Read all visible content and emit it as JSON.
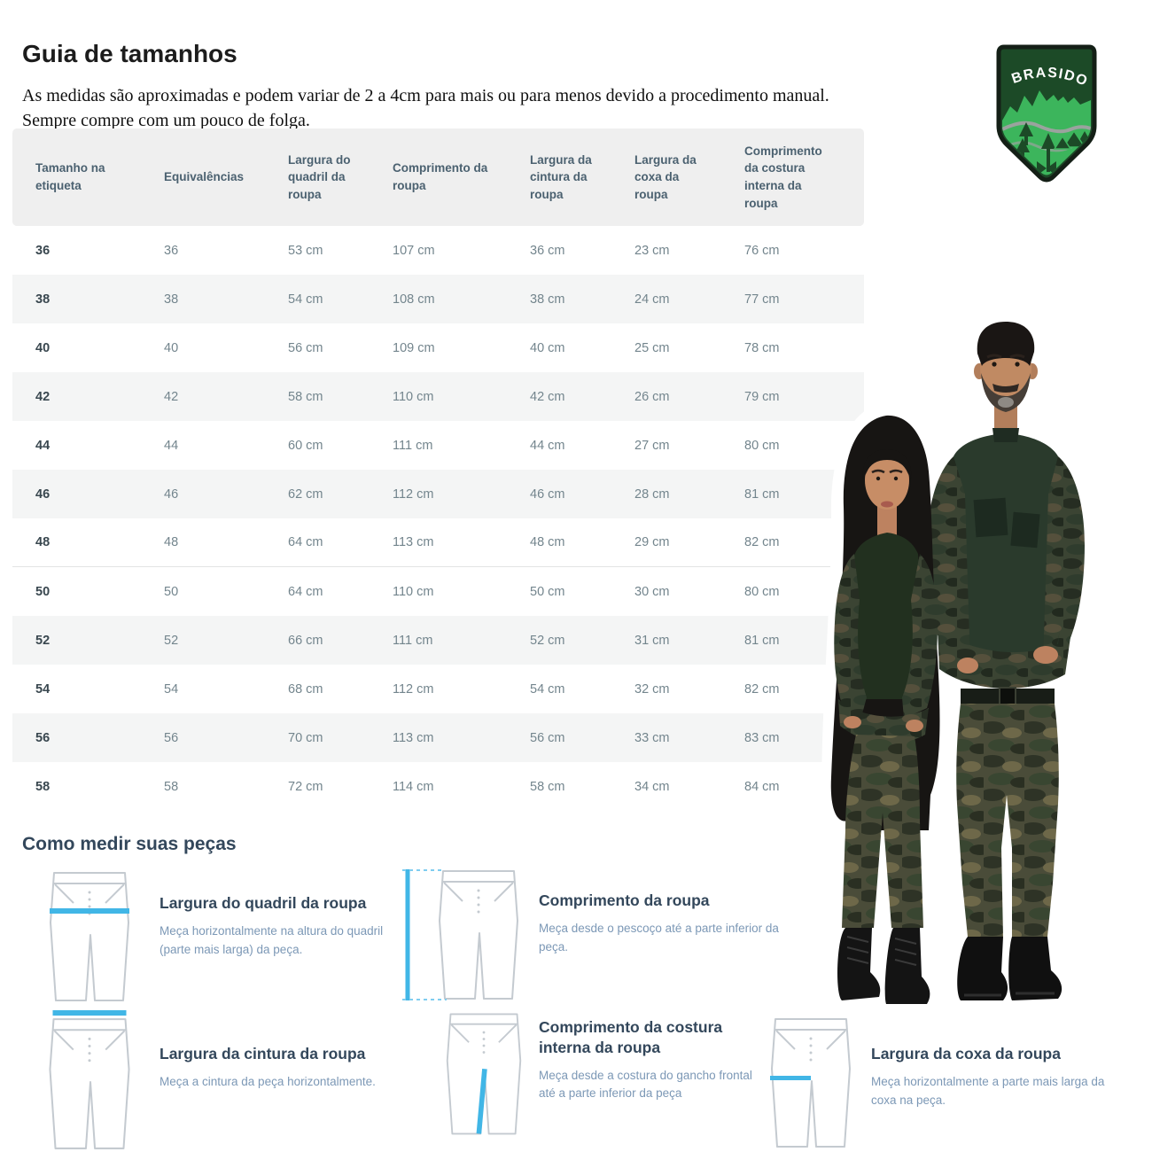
{
  "page": {
    "title": "Guia de tamanhos",
    "subtitle_line1": "As medidas são aproximadas e podem variar de 2 a 4cm para mais ou para menos devido a procedimento manual.",
    "subtitle_line2": "Sempre compre com um pouco de folga."
  },
  "logo": {
    "brand": "BRASIDO"
  },
  "size_table": {
    "columns": [
      "Tamanho na etiqueta",
      "Equivalências",
      "Largura do quadril da roupa",
      "Comprimento da roupa",
      "Largura da cintura da roupa",
      "Largura da coxa da roupa",
      "Comprimento da costura interna da roupa"
    ],
    "rows": [
      [
        "36",
        "36",
        "53 cm",
        "107 cm",
        "36 cm",
        "23 cm",
        "76 cm"
      ],
      [
        "38",
        "38",
        "54 cm",
        "108 cm",
        "38 cm",
        "24 cm",
        "77 cm"
      ],
      [
        "40",
        "40",
        "56 cm",
        "109 cm",
        "40 cm",
        "25 cm",
        "78 cm"
      ],
      [
        "42",
        "42",
        "58 cm",
        "110 cm",
        "42 cm",
        "26 cm",
        "79 cm"
      ],
      [
        "44",
        "44",
        "60 cm",
        "111 cm",
        "44 cm",
        "27 cm",
        "80 cm"
      ],
      [
        "46",
        "46",
        "62 cm",
        "112 cm",
        "46 cm",
        "28 cm",
        "81 cm"
      ],
      [
        "48",
        "48",
        "64 cm",
        "113 cm",
        "48 cm",
        "29 cm",
        "82 cm"
      ],
      [
        "50",
        "50",
        "64 cm",
        "110 cm",
        "50 cm",
        "30 cm",
        "80 cm"
      ],
      [
        "52",
        "52",
        "66 cm",
        "111 cm",
        "52 cm",
        "31 cm",
        "81 cm"
      ],
      [
        "54",
        "54",
        "68 cm",
        "112 cm",
        "54 cm",
        "32 cm",
        "82 cm"
      ],
      [
        "56",
        "56",
        "70 cm",
        "113 cm",
        "56 cm",
        "33 cm",
        "83 cm"
      ],
      [
        "58",
        "58",
        "72 cm",
        "114 cm",
        "58 cm",
        "34 cm",
        "84 cm"
      ]
    ]
  },
  "measure_section": {
    "heading": "Como medir suas peças",
    "items": [
      {
        "title": "Largura do quadril da roupa",
        "description": "Meça horizontalmente na altura do quadril (parte mais larga) da peça."
      },
      {
        "title": "Comprimento da roupa",
        "description": "Meça desde o pescoço até a parte inferior da peça."
      },
      {
        "title": "Largura da cintura da roupa",
        "description": "Meça a cintura da peça horizontalmente."
      },
      {
        "title": "Comprimento da costura interna da roupa",
        "description": "Meça desde a costura do gancho frontal até a parte inferior da peça"
      },
      {
        "title": "Largura da coxa da roupa",
        "description": "Meça horizontalmente a parte mais larga da coxa na peça."
      }
    ]
  },
  "colors": {
    "measure_line": "#41b6e6",
    "heading_navy": "#33475b",
    "description_blue": "#7c98b6",
    "stripe_gray": "#f4f5f5",
    "header_band": "#efefef",
    "logo_dark_green": "#1c4a27",
    "logo_bright_green": "#3cb55c"
  }
}
